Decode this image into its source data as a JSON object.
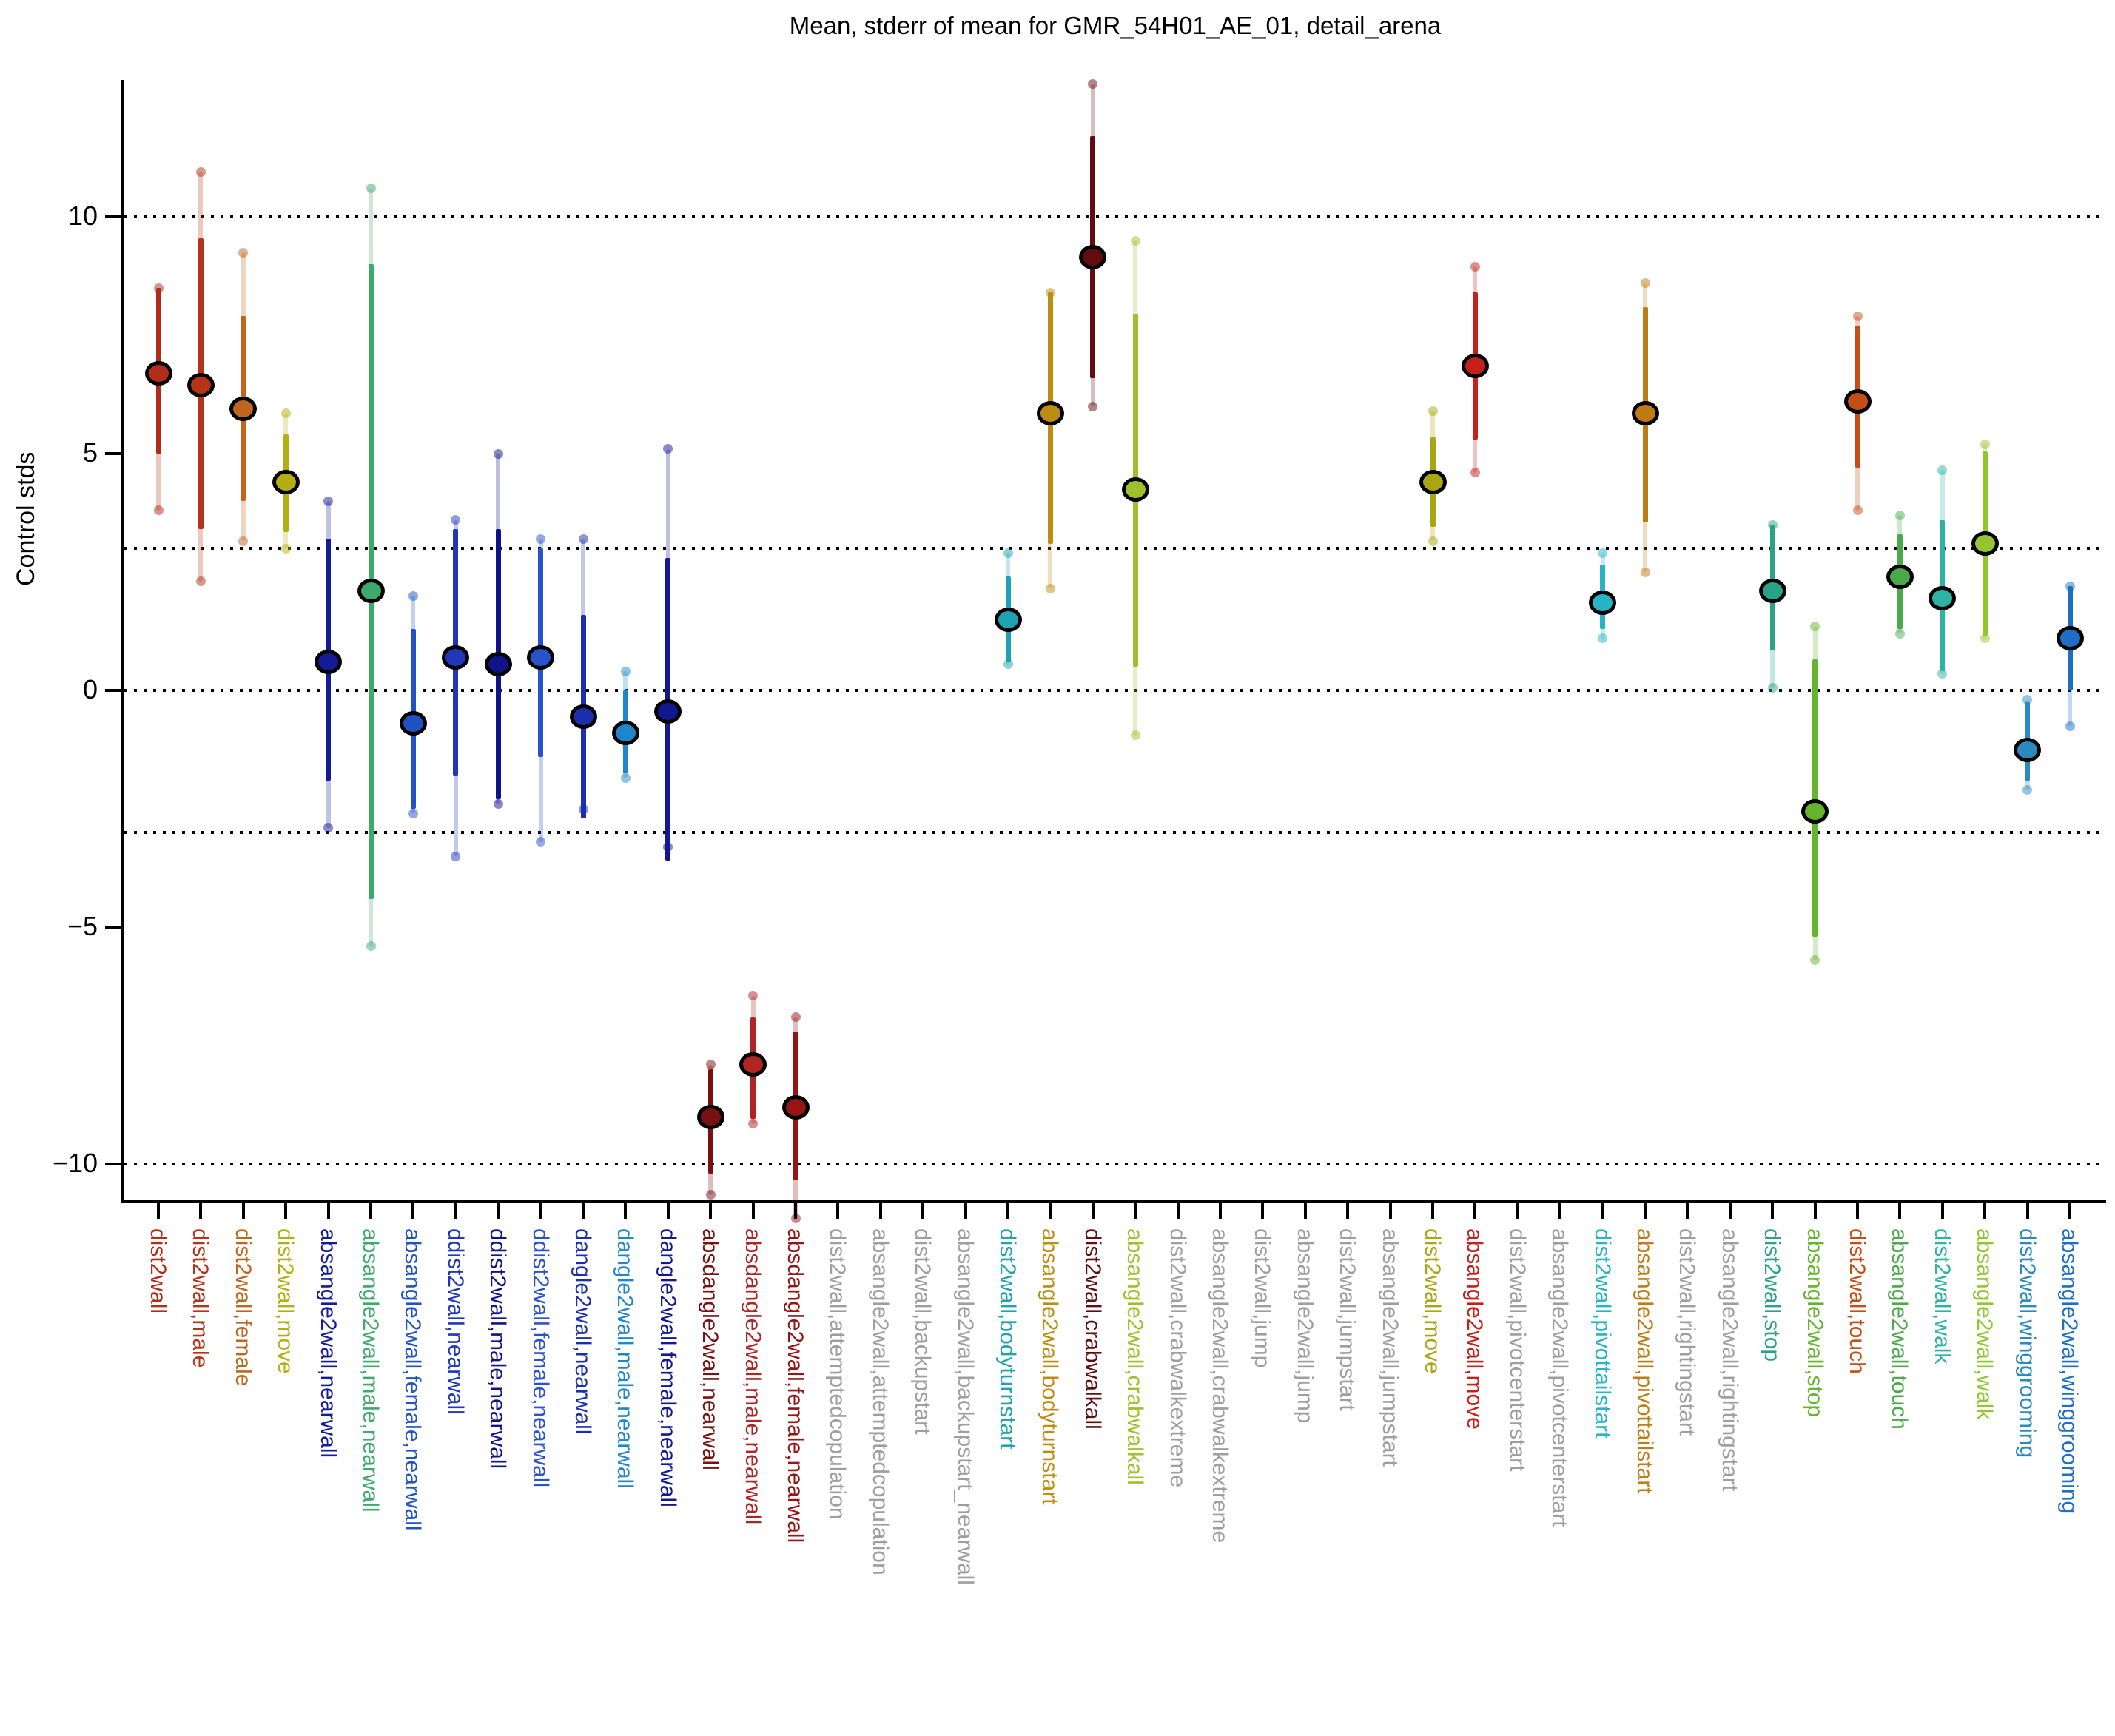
{
  "chart_data": {
    "type": "scatter",
    "title": "Mean, stderr of mean for GMR_54H01_AE_01, detail_arena",
    "ylabel": "Control stds",
    "xlabel": "",
    "ylim": [
      -11.0,
      12.9
    ],
    "grid": "dotted horizontal lines",
    "gridlines_y": [
      10,
      3,
      0,
      -3,
      -10
    ],
    "yticks": [
      {
        "value": 10,
        "label": "10"
      },
      {
        "value": 5,
        "label": "5"
      },
      {
        "value": 0,
        "label": "0"
      },
      {
        "value": -5,
        "label": "−5"
      },
      {
        "value": -10,
        "label": "−10"
      }
    ],
    "legend": "none",
    "marker_edge_color": "#000000",
    "no_data_label_color": "#9e9e9e",
    "series_note": "each category: mean dot, dark bar = mean±stderr, pale bar = mean±std (same hue, faded, with round end caps); gray categories have labels only, no data",
    "categories": [
      {
        "label": "dist2wall",
        "color": "#b22c17",
        "mean": 6.7,
        "se": [
          5.0,
          8.5
        ],
        "sd": [
          3.8,
          8.5
        ]
      },
      {
        "label": "dist2wall,male",
        "color": "#b53418",
        "mean": 6.45,
        "se": [
          3.4,
          9.55
        ],
        "sd": [
          2.3,
          10.95
        ]
      },
      {
        "label": "dist2wall,female",
        "color": "#c0651c",
        "mean": 5.95,
        "se": [
          4.0,
          7.9
        ],
        "sd": [
          3.15,
          9.25
        ]
      },
      {
        "label": "dist2wall,move",
        "color": "#b3ae14",
        "mean": 4.4,
        "se": [
          3.35,
          5.4
        ],
        "sd": [
          3.0,
          5.85
        ]
      },
      {
        "label": "absangle2wall,nearwall",
        "color": "#151a96",
        "mean": 0.6,
        "se": [
          -1.9,
          3.2
        ],
        "sd": [
          -2.9,
          4.0
        ]
      },
      {
        "label": "absangle2wall,male,nearwall",
        "color": "#3da96d",
        "mean": 2.1,
        "se": [
          -4.4,
          9.0
        ],
        "sd": [
          -5.4,
          10.6
        ]
      },
      {
        "label": "absangle2wall,female,nearwall",
        "color": "#2052c4",
        "mean": -0.7,
        "se": [
          -2.5,
          1.3
        ],
        "sd": [
          -2.6,
          2.0
        ]
      },
      {
        "label": "ddist2wall,nearwall",
        "color": "#2038b8",
        "mean": 0.7,
        "se": [
          -1.8,
          3.4
        ],
        "sd": [
          -3.5,
          3.6
        ]
      },
      {
        "label": "ddist2wall,male,nearwall",
        "color": "#0f1387",
        "mean": 0.55,
        "se": [
          -2.3,
          3.4
        ],
        "sd": [
          -2.4,
          5.0
        ]
      },
      {
        "label": "ddist2wall,female,nearwall",
        "color": "#2a52cc",
        "mean": 0.7,
        "se": [
          -1.4,
          3.0
        ],
        "sd": [
          -3.2,
          3.2
        ]
      },
      {
        "label": "dangle2wall,nearwall",
        "color": "#1b2fae",
        "mean": -0.55,
        "se": [
          -2.7,
          1.6
        ],
        "sd": [
          -2.5,
          3.2
        ]
      },
      {
        "label": "dangle2wall,male,nearwall",
        "color": "#1f86cc",
        "mean": -0.9,
        "se": [
          -1.75,
          0.0
        ],
        "sd": [
          -1.85,
          0.4
        ]
      },
      {
        "label": "dangle2wall,female,nearwall",
        "color": "#12188f",
        "mean": -0.45,
        "se": [
          -3.6,
          2.8
        ],
        "sd": [
          -3.3,
          5.1
        ]
      },
      {
        "label": "absdangle2wall,nearwall",
        "color": "#7a1012",
        "mean": -9.0,
        "se": [
          -10.2,
          -8.0
        ],
        "sd": [
          -10.65,
          -7.9
        ]
      },
      {
        "label": "absdangle2wall,male,nearwall",
        "color": "#b02423",
        "mean": -7.9,
        "se": [
          -9.05,
          -6.9
        ],
        "sd": [
          -9.15,
          -6.45
        ]
      },
      {
        "label": "absdangle2wall,female,nearwall",
        "color": "#951414",
        "mean": -8.8,
        "se": [
          -10.35,
          -7.2
        ],
        "sd": [
          -11.15,
          -6.9
        ]
      },
      {
        "label": "dist2wall,attemptedcopulation",
        "color": "#9e9e9e",
        "mean": null,
        "se": null,
        "sd": null
      },
      {
        "label": "absangle2wall,attemptedcopulation",
        "color": "#9e9e9e",
        "mean": null,
        "se": null,
        "sd": null
      },
      {
        "label": "dist2wall,backupstart",
        "color": "#9e9e9e",
        "mean": null,
        "se": null,
        "sd": null
      },
      {
        "label": "absangle2wall,backupstart_nearwall",
        "color": "#9e9e9e",
        "mean": null,
        "se": null,
        "sd": null
      },
      {
        "label": "dist2wall,bodyturnstart",
        "color": "#1fa3b2",
        "mean": 1.5,
        "se": [
          0.6,
          2.4
        ],
        "sd": [
          0.55,
          2.9
        ]
      },
      {
        "label": "absangle2wall,bodyturnstart",
        "color": "#bd8d11",
        "mean": 5.85,
        "se": [
          3.1,
          8.4
        ],
        "sd": [
          2.15,
          8.4
        ]
      },
      {
        "label": "dist2wall,crabwalkall",
        "color": "#610d0f",
        "mean": 9.15,
        "se": [
          6.6,
          11.7
        ],
        "sd": [
          6.0,
          12.8
        ]
      },
      {
        "label": "absangle2wall,crabwalkall",
        "color": "#9fc02b",
        "mean": 4.25,
        "se": [
          0.5,
          7.95
        ],
        "sd": [
          -0.95,
          9.5
        ]
      },
      {
        "label": "dist2wall,crabwalkextreme",
        "color": "#9e9e9e",
        "mean": null,
        "se": null,
        "sd": null
      },
      {
        "label": "absangle2wall,crabwalkextreme",
        "color": "#9e9e9e",
        "mean": null,
        "se": null,
        "sd": null
      },
      {
        "label": "dist2wall,jump",
        "color": "#9e9e9e",
        "mean": null,
        "se": null,
        "sd": null
      },
      {
        "label": "absangle2wall,jump",
        "color": "#9e9e9e",
        "mean": null,
        "se": null,
        "sd": null
      },
      {
        "label": "dist2wall,jumpstart",
        "color": "#9e9e9e",
        "mean": null,
        "se": null,
        "sd": null
      },
      {
        "label": "absangle2wall,jumpstart",
        "color": "#9e9e9e",
        "mean": null,
        "se": null,
        "sd": null
      },
      {
        "label": "dist2wall,move",
        "color": "#aaa513",
        "mean": 4.4,
        "se": [
          3.45,
          5.35
        ],
        "sd": [
          3.15,
          5.9
        ]
      },
      {
        "label": "absangle2wall,move",
        "color": "#c52019",
        "mean": 6.85,
        "se": [
          5.3,
          8.4
        ],
        "sd": [
          4.6,
          8.95
        ]
      },
      {
        "label": "dist2wall,pivotcenterstart",
        "color": "#9e9e9e",
        "mean": null,
        "se": null,
        "sd": null
      },
      {
        "label": "absangle2wall,pivotcenterstart",
        "color": "#9e9e9e",
        "mean": null,
        "se": null,
        "sd": null
      },
      {
        "label": "dist2wall,pivottailstart",
        "color": "#27b4c4",
        "mean": 1.85,
        "se": [
          1.3,
          2.65
        ],
        "sd": [
          1.1,
          2.9
        ]
      },
      {
        "label": "absangle2wall,pivottailstart",
        "color": "#bf7b14",
        "mean": 5.85,
        "se": [
          3.55,
          8.1
        ],
        "sd": [
          2.5,
          8.6
        ]
      },
      {
        "label": "dist2wall,rightingstart",
        "color": "#9e9e9e",
        "mean": null,
        "se": null,
        "sd": null
      },
      {
        "label": "absangle2wall,rightingstart",
        "color": "#9e9e9e",
        "mean": null,
        "se": null,
        "sd": null
      },
      {
        "label": "dist2wall,stop",
        "color": "#2aa287",
        "mean": 2.1,
        "se": [
          0.85,
          3.5
        ],
        "sd": [
          0.05,
          3.5
        ]
      },
      {
        "label": "absangle2wall,stop",
        "color": "#64b42d",
        "mean": -2.55,
        "se": [
          -5.2,
          0.65
        ],
        "sd": [
          -5.7,
          1.35
        ]
      },
      {
        "label": "dist2wall,touch",
        "color": "#c54d16",
        "mean": 6.1,
        "se": [
          4.7,
          7.7
        ],
        "sd": [
          3.8,
          7.9
        ]
      },
      {
        "label": "absangle2wall,touch",
        "color": "#4ba94b",
        "mean": 2.4,
        "se": [
          1.3,
          3.3
        ],
        "sd": [
          1.2,
          3.7
        ]
      },
      {
        "label": "dist2wall,walk",
        "color": "#2db3a3",
        "mean": 1.95,
        "se": [
          0.4,
          3.6
        ],
        "sd": [
          0.35,
          4.65
        ]
      },
      {
        "label": "absangle2wall,walk",
        "color": "#92c52f",
        "mean": 3.1,
        "se": [
          1.15,
          5.05
        ],
        "sd": [
          1.1,
          5.2
        ]
      },
      {
        "label": "dist2wall,winggrooming",
        "color": "#2b8abd",
        "mean": -1.25,
        "se": [
          -1.9,
          -0.25
        ],
        "sd": [
          -2.1,
          -0.2
        ]
      },
      {
        "label": "absangle2wall,winggrooming",
        "color": "#1c6fc4",
        "mean": 1.1,
        "se": [
          0.0,
          2.2
        ],
        "sd": [
          -0.75,
          2.2
        ]
      }
    ]
  }
}
